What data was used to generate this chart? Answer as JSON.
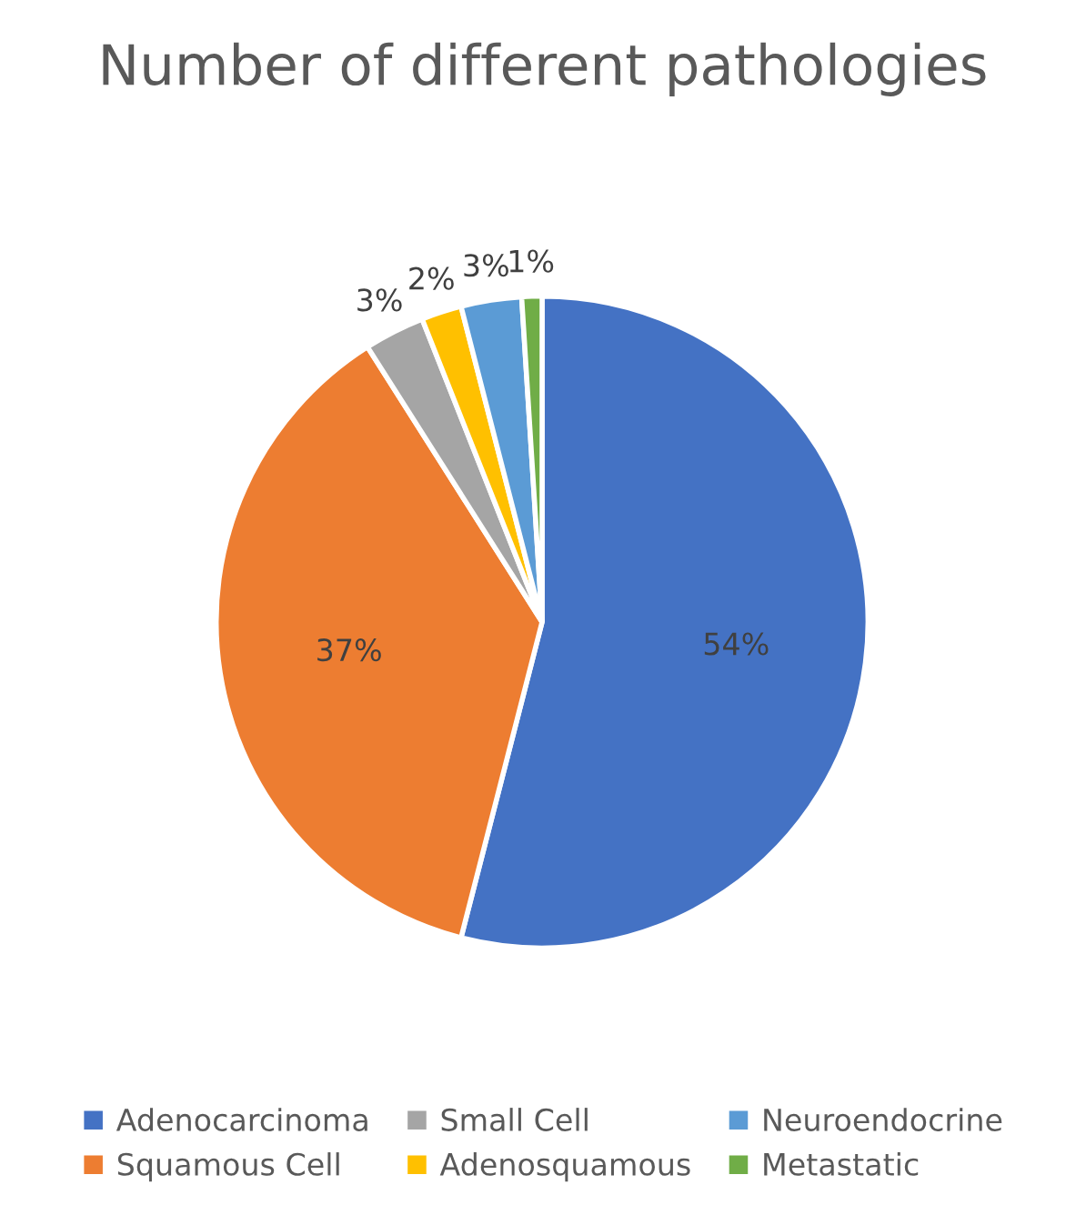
{
  "chart_data": {
    "type": "pie",
    "title": "Number of different pathologies",
    "categories": [
      "Adenocarcinoma",
      "Squamous Cell",
      "Small Cell",
      "Adenosquamous",
      "Neuroendocrine",
      "Metastatic"
    ],
    "values": [
      54,
      37,
      3,
      2,
      3,
      1
    ],
    "colors": [
      "#4472c4",
      "#ed7d31",
      "#a5a5a5",
      "#ffc000",
      "#5b9bd5",
      "#70ad47"
    ],
    "value_labels": [
      "54%",
      "37%",
      "3%",
      "2%",
      "3%",
      "1%"
    ],
    "legend": "bottom"
  }
}
